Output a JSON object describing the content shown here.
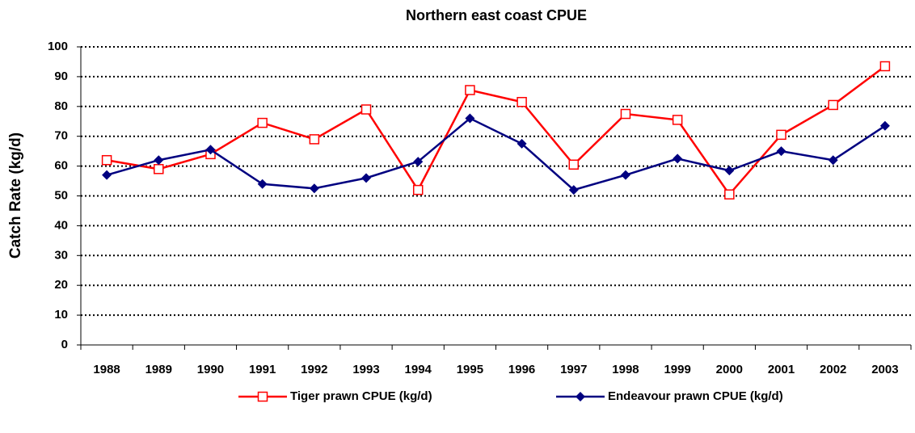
{
  "chart_data": {
    "type": "line",
    "title": "Northern east coast CPUE",
    "y_label": "Catch Rate (kg/d)",
    "categories": [
      "1988",
      "1989",
      "1990",
      "1991",
      "1992",
      "1993",
      "1994",
      "1995",
      "1996",
      "1997",
      "1998",
      "1999",
      "2000",
      "2001",
      "2002",
      "2003"
    ],
    "series": [
      {
        "name": "Tiger prawn CPUE (kg/d)",
        "color": "#ff0000",
        "marker": "square-open",
        "values": [
          62,
          59,
          64,
          74.5,
          69,
          79,
          52,
          85.5,
          81.5,
          60.5,
          77.5,
          75.5,
          50.5,
          70.5,
          80.5,
          93.5
        ]
      },
      {
        "name": "Endeavour prawn CPUE (kg/d)",
        "color": "#000080",
        "marker": "diamond",
        "values": [
          57,
          62,
          65.5,
          54,
          52.5,
          56,
          61.5,
          76,
          67.5,
          52,
          57,
          62.5,
          58.5,
          65,
          62,
          73.5
        ]
      }
    ],
    "ylim": [
      0,
      100
    ],
    "yticks": [
      0,
      10,
      20,
      30,
      40,
      50,
      60,
      70,
      80,
      90,
      100
    ],
    "grid": true,
    "legend": "bottom"
  }
}
